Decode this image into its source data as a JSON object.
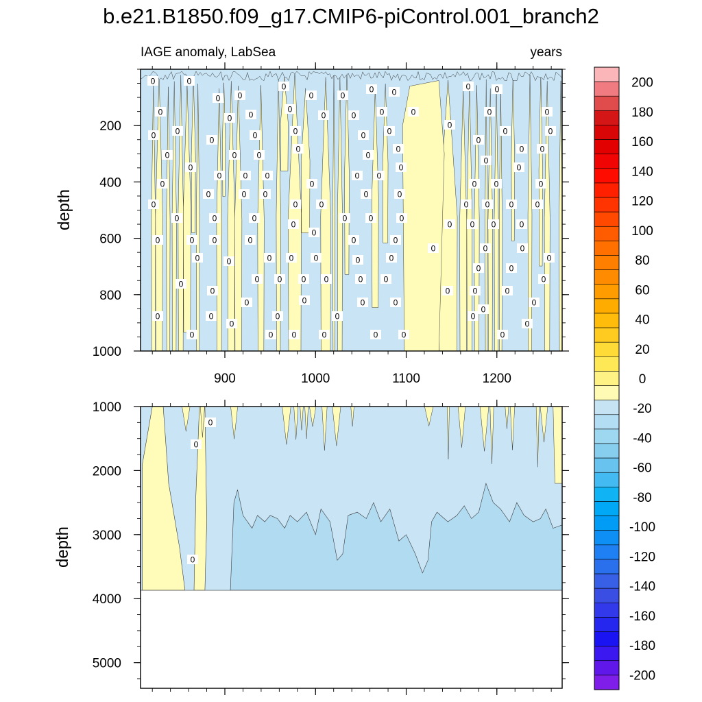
{
  "chart_data": {
    "type": "heatmap",
    "title": "b.e21.B1850.f09_g17.CMIP6-piControl.001_branch2",
    "left_label": "IAGE anomaly, LabSea",
    "right_label": "years",
    "x_tick_labels": [
      "900",
      "1000",
      "1100",
      "1200"
    ],
    "x_ticks": [
      900,
      1000,
      1100,
      1200
    ],
    "xlim": [
      807,
      1272
    ],
    "panels": [
      {
        "name": "upper",
        "ylabel": "depth",
        "ylim": [
          0,
          1000
        ],
        "y_ticks": [
          200,
          400,
          600,
          800,
          1000
        ],
        "y_tick_labels": [
          "200",
          "400",
          "600",
          "800",
          "1000"
        ],
        "fill_levels": [
          "0 to 20 (yellow)",
          "-20 to 0 (light blue)"
        ]
      },
      {
        "name": "lower",
        "ylabel": "depth",
        "ylim": [
          1000,
          5400
        ],
        "y_ticks": [
          1000,
          2000,
          3000,
          4000,
          5000
        ],
        "y_tick_labels": [
          "1000",
          "2000",
          "3000",
          "4000",
          "5000"
        ],
        "data_bottom_depth": 3870,
        "fill_levels": [
          "0 to 20 (yellow)",
          "-20 to 0 (light blue)",
          "-40 to -20 (medium blue)"
        ]
      }
    ],
    "contour_line_labels": [
      "0"
    ],
    "colorbar": {
      "labels": [
        "200",
        "180",
        "160",
        "140",
        "120",
        "100",
        "80",
        "60",
        "40",
        "20",
        "0",
        "-20",
        "-40",
        "-60",
        "-80",
        "-100",
        "-120",
        "-140",
        "-160",
        "-180",
        "-200"
      ],
      "range": [
        -210,
        210
      ],
      "interval": 10,
      "colors": [
        "#fbb6ba",
        "#f07c81",
        "#e04b4b",
        "#d41616",
        "#d80606",
        "#e30000",
        "#f00404",
        "#ff0c00",
        "#ff2000",
        "#ff3400",
        "#ff4800",
        "#ff5c00",
        "#ff7000",
        "#ff8000",
        "#ff8c00",
        "#ff9c00",
        "#ffac00",
        "#ffbc0a",
        "#ffcb20",
        "#ffdb38",
        "#ffe855",
        "#fff285",
        "#fffbb5",
        "#c6e3f4",
        "#b2ddf2",
        "#9ed7f0",
        "#86cdee",
        "#68c4ef",
        "#43baf2",
        "#10b3f4",
        "#00a8f5",
        "#009cf5",
        "#0e8ff5",
        "#1e80f2",
        "#2a70ed",
        "#3760e6",
        "#3b4ee4",
        "#3139ea",
        "#2526ee",
        "#1a14f2",
        "#3a18ef",
        "#6018ea",
        "#7e1ee8"
      ]
    }
  }
}
